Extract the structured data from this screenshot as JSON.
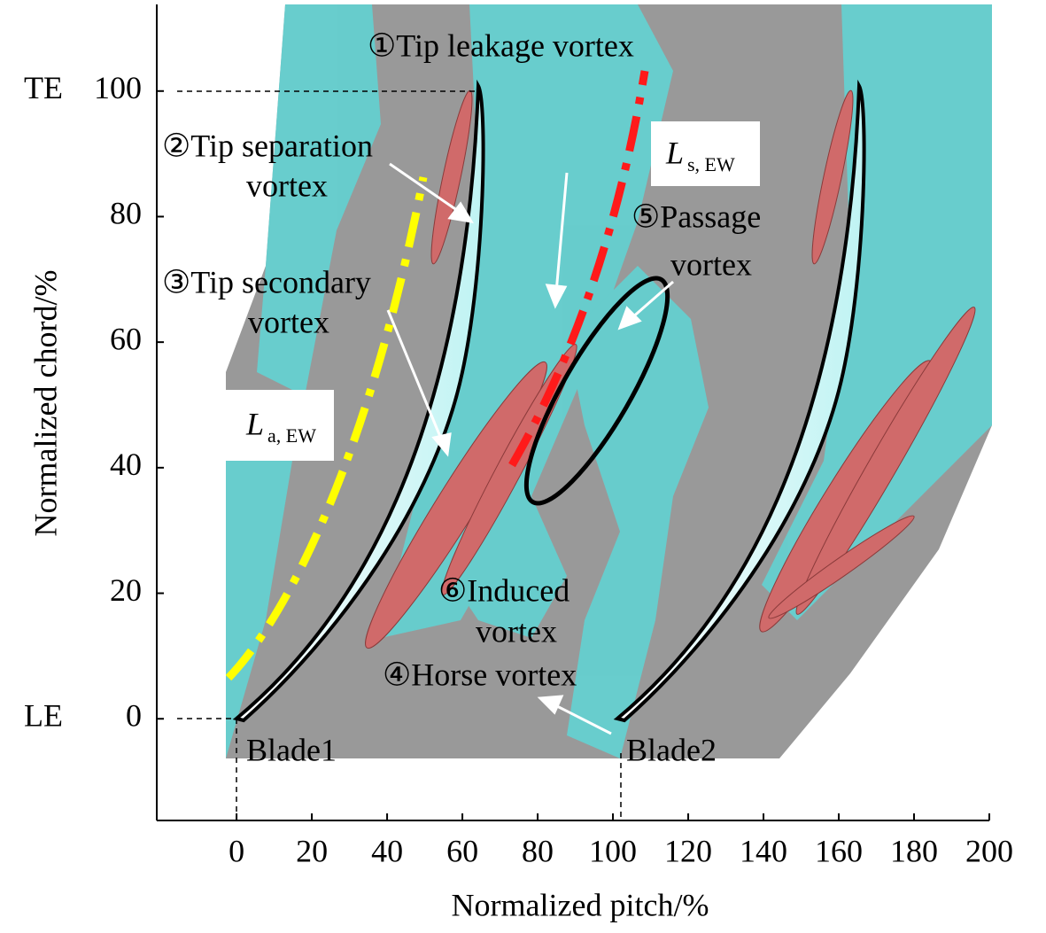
{
  "chart_data": {
    "type": "flow-field",
    "x_label": "Normalized pitch/%",
    "y_label": "Normalized chord/%",
    "xlim": [
      -21.2,
      200
    ],
    "ylim": [
      -16.2,
      113.8
    ],
    "xticks": [
      0,
      20,
      40,
      60,
      80,
      100,
      120,
      140,
      160,
      180,
      200
    ],
    "yticks": [
      0,
      20,
      40,
      60,
      80,
      100
    ],
    "y_edge_labels": [
      "LE",
      "TE"
    ],
    "annotations": [
      {
        "lines": [
          "①Tip leakage vortex"
        ]
      },
      {
        "lines": [
          "②Tip separation",
          "vortex"
        ]
      },
      {
        "lines": [
          "③Tip secondary",
          "vortex"
        ]
      },
      {
        "lines": [
          "④Horse vortex"
        ]
      },
      {
        "lines": [
          "⑤Passage",
          "vortex"
        ]
      },
      {
        "lines": [
          "⑥Induced",
          "vortex"
        ]
      }
    ],
    "lines": [
      {
        "symbol": "L",
        "subscript": "a, EW",
        "color": "#ffff00"
      },
      {
        "symbol": "L",
        "subscript": "s, EW",
        "color": "#ff1a1a"
      }
    ],
    "blades": [
      "Blade1",
      "Blade2"
    ]
  }
}
